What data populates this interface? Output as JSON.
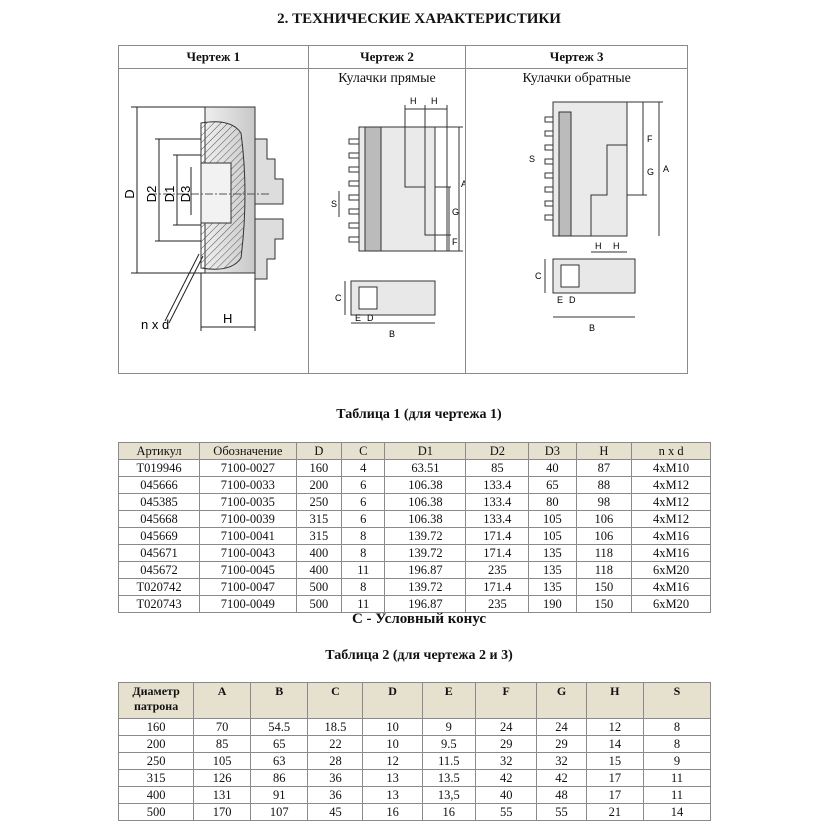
{
  "section_title": "2. ТЕХНИЧЕСКИЕ ХАРАКТЕРИСТИКИ",
  "drawings": {
    "headers": [
      "Чертеж 1",
      "Чертеж 2",
      "Чертеж 3"
    ],
    "subtitles": [
      "",
      "Кулачки прямые",
      "Кулачки обратные"
    ],
    "labels1": {
      "D": "D",
      "D2": "D2",
      "D1": "D1",
      "D3": "D3",
      "nxd": "n x d",
      "H": "H"
    },
    "labels2": {
      "H1": "H",
      "H2": "H",
      "S": "S",
      "G": "G",
      "A": "A",
      "F": "F",
      "C": "C",
      "E": "E",
      "D": "D",
      "B": "B"
    },
    "labels3": {
      "F": "F",
      "G": "G",
      "A": "A",
      "S": "S",
      "H1": "H",
      "H2": "H",
      "C": "C",
      "E": "E",
      "D": "D",
      "B": "B"
    }
  },
  "table1": {
    "caption": "Таблица 1 (для чертежа 1)",
    "headers": [
      "Артикул",
      "Обозначение",
      "D",
      "C",
      "D1",
      "D2",
      "D3",
      "H",
      "n x d"
    ],
    "rows": [
      [
        "T019946",
        "7100-0027",
        "160",
        "4",
        "63.51",
        "85",
        "40",
        "87",
        "4xM10"
      ],
      [
        "045666",
        "7100-0033",
        "200",
        "6",
        "106.38",
        "133.4",
        "65",
        "88",
        "4xM12"
      ],
      [
        "045385",
        "7100-0035",
        "250",
        "6",
        "106.38",
        "133.4",
        "80",
        "98",
        "4xM12"
      ],
      [
        "045668",
        "7100-0039",
        "315",
        "6",
        "106.38",
        "133.4",
        "105",
        "106",
        "4xM12"
      ],
      [
        "045669",
        "7100-0041",
        "315",
        "8",
        "139.72",
        "171.4",
        "105",
        "106",
        "4xM16"
      ],
      [
        "045671",
        "7100-0043",
        "400",
        "8",
        "139.72",
        "171.4",
        "135",
        "118",
        "4xM16"
      ],
      [
        "045672",
        "7100-0045",
        "400",
        "11",
        "196.87",
        "235",
        "135",
        "118",
        "6xM20"
      ],
      [
        "T020742",
        "7100-0047",
        "500",
        "8",
        "139.72",
        "171.4",
        "135",
        "150",
        "4xM16"
      ],
      [
        "T020743",
        "7100-0049",
        "500",
        "11",
        "196.87",
        "235",
        "190",
        "150",
        "6xM20"
      ]
    ],
    "note": "С - Условный конус"
  },
  "table2": {
    "caption": "Таблица 2 (для чертежа 2 и 3)",
    "headers": [
      "Диаметр патрона",
      "A",
      "B",
      "C",
      "D",
      "E",
      "F",
      "G",
      "H",
      "S"
    ],
    "rows": [
      [
        "160",
        "70",
        "54.5",
        "18.5",
        "10",
        "9",
        "24",
        "24",
        "12",
        "8"
      ],
      [
        "200",
        "85",
        "65",
        "22",
        "10",
        "9.5",
        "29",
        "29",
        "14",
        "8"
      ],
      [
        "250",
        "105",
        "63",
        "28",
        "12",
        "11.5",
        "32",
        "32",
        "15",
        "9"
      ],
      [
        "315",
        "126",
        "86",
        "36",
        "13",
        "13.5",
        "42",
        "42",
        "17",
        "11"
      ],
      [
        "400",
        "131",
        "91",
        "36",
        "13",
        "13,5",
        "40",
        "48",
        "17",
        "11"
      ],
      [
        "500",
        "170",
        "107",
        "45",
        "16",
        "16",
        "55",
        "55",
        "21",
        "14"
      ]
    ]
  }
}
